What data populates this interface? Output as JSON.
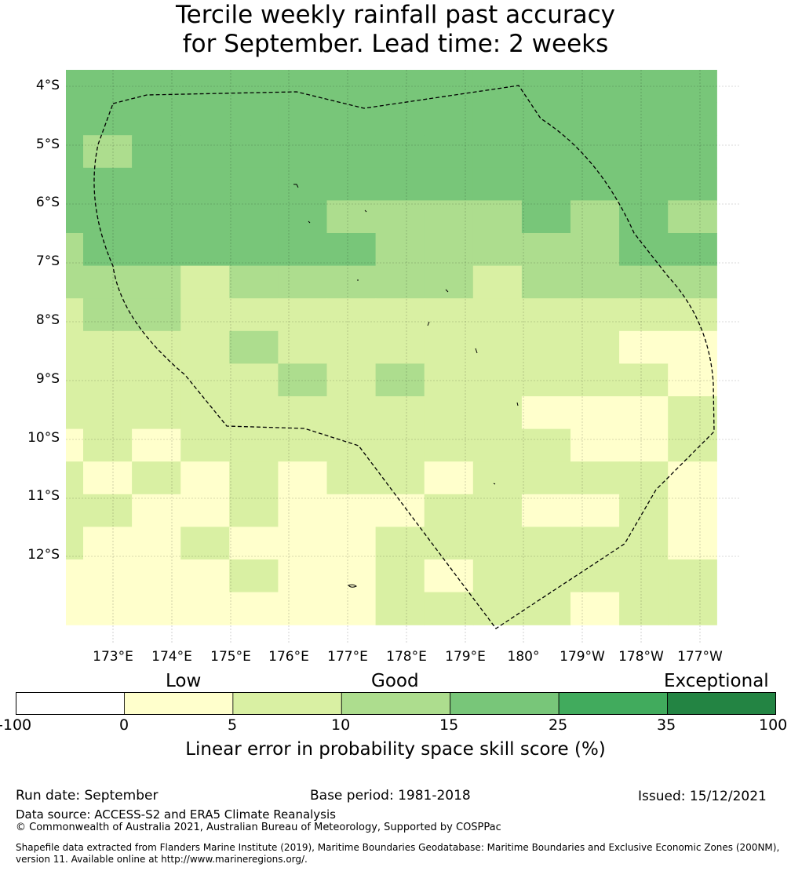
{
  "title": {
    "line1": "Tercile weekly rainfall past accuracy",
    "line2": "for September. Lead time: 2 weeks"
  },
  "map": {
    "lat_labels": [
      "4°S",
      "5°S",
      "6°S",
      "7°S",
      "8°S",
      "9°S",
      "10°S",
      "11°S",
      "12°S"
    ],
    "lon_labels": [
      "173°E",
      "174°E",
      "175°E",
      "176°E",
      "177°E",
      "178°E",
      "179°E",
      "180°",
      "179°W",
      "178°W",
      "177°W"
    ],
    "colors": [
      "#ffffff",
      "#ffffcc",
      "#d9f0a3",
      "#addd8e",
      "#78c679",
      "#41ab5d",
      "#238443"
    ],
    "grid": [
      [
        4,
        4,
        4,
        4,
        4,
        4,
        4,
        4,
        4,
        4,
        4,
        4,
        4,
        4
      ],
      [
        4,
        4,
        4,
        4,
        4,
        4,
        4,
        4,
        4,
        4,
        4,
        4,
        4,
        4
      ],
      [
        4,
        3,
        4,
        4,
        4,
        4,
        4,
        4,
        4,
        4,
        4,
        4,
        4,
        4
      ],
      [
        4,
        4,
        4,
        4,
        4,
        4,
        4,
        4,
        4,
        4,
        4,
        4,
        4,
        4
      ],
      [
        4,
        4,
        4,
        4,
        4,
        4,
        3,
        3,
        3,
        3,
        4,
        3,
        4,
        3
      ],
      [
        3,
        4,
        4,
        4,
        4,
        4,
        4,
        3,
        3,
        3,
        3,
        3,
        4,
        4
      ],
      [
        3,
        3,
        3,
        2,
        3,
        3,
        3,
        3,
        3,
        2,
        3,
        3,
        3,
        3
      ],
      [
        2,
        3,
        3,
        2,
        2,
        2,
        2,
        2,
        2,
        2,
        2,
        2,
        2,
        2
      ],
      [
        2,
        2,
        2,
        2,
        3,
        2,
        2,
        2,
        2,
        2,
        2,
        2,
        1,
        1
      ],
      [
        2,
        2,
        2,
        2,
        2,
        3,
        2,
        3,
        2,
        2,
        2,
        2,
        2,
        1
      ],
      [
        2,
        2,
        2,
        2,
        2,
        2,
        2,
        2,
        2,
        2,
        1,
        1,
        1,
        2
      ],
      [
        1,
        2,
        1,
        2,
        2,
        2,
        2,
        2,
        2,
        2,
        2,
        1,
        1,
        2
      ],
      [
        2,
        1,
        2,
        1,
        2,
        1,
        2,
        2,
        1,
        2,
        2,
        2,
        2,
        1
      ],
      [
        2,
        2,
        1,
        1,
        2,
        1,
        1,
        1,
        2,
        2,
        1,
        1,
        2,
        1
      ],
      [
        2,
        1,
        1,
        2,
        1,
        1,
        1,
        2,
        2,
        2,
        2,
        2,
        2,
        1
      ],
      [
        1,
        1,
        1,
        1,
        2,
        1,
        1,
        2,
        1,
        2,
        2,
        2,
        2,
        2
      ],
      [
        1,
        1,
        1,
        1,
        1,
        1,
        1,
        2,
        2,
        2,
        2,
        1,
        2,
        2
      ]
    ]
  },
  "colorbar": {
    "category_labels": [
      "Low",
      "Good",
      "Exceptional"
    ],
    "ticks": [
      "-100",
      "0",
      "5",
      "10",
      "15",
      "25",
      "35",
      "100"
    ],
    "label": "Linear error in probability space skill score (%)"
  },
  "footer": {
    "run_date": "Run date: September",
    "base_period": "Base period: 1981-2018",
    "issued": "Issued: 15/12/2021",
    "data_source": "Data source: ACCESS-S2 and ERA5 Climate Reanalysis",
    "copyright": "© Commonwealth of Australia 2021, Australian Bureau of Meteorology, Supported by COSPPac",
    "shapefile_line1": "Shapefile data extracted from Flanders Marine Institute (2019), Maritime Boundaries Geodatabase: Maritime Boundaries and Exclusive Economic Zones (200NM),",
    "shapefile_line2": "version 11. Available online at http://www.marineregions.org/."
  }
}
